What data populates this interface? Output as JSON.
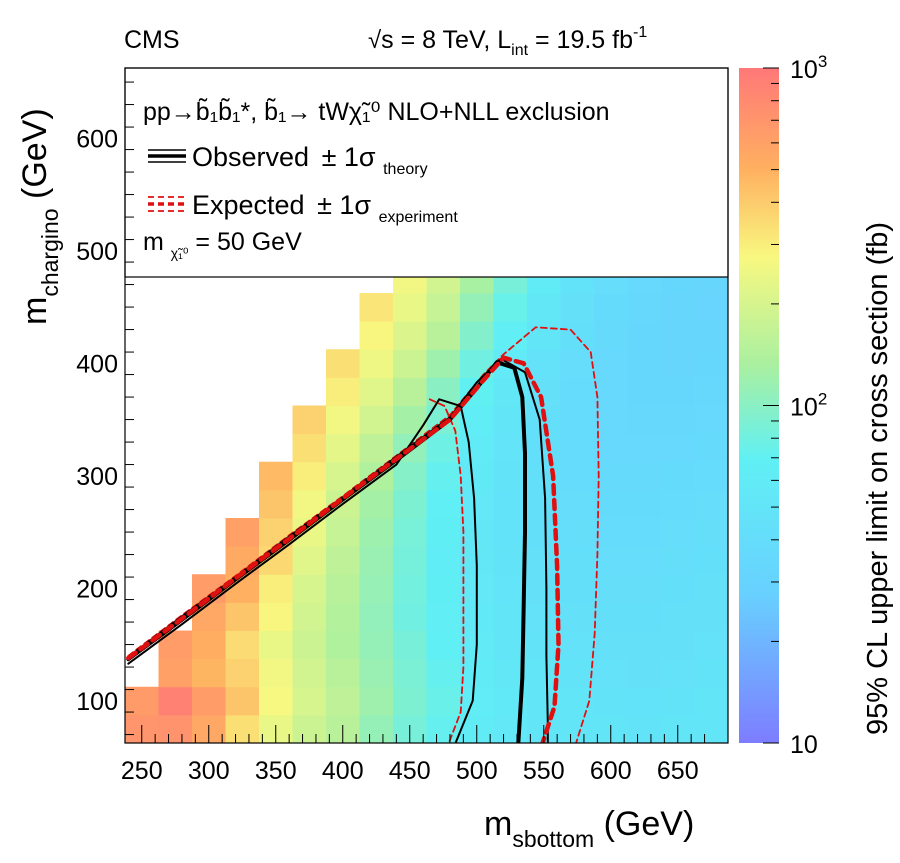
{
  "chart_data": {
    "type": "heatmap",
    "experiment": "CMS",
    "energy": {
      "root": "√",
      "s": "s",
      "eq": " = 8 TeV,  ",
      "L": "L",
      "L_sub": "int",
      "lumi": " = 19.5 fb",
      "lumi_sup": "-1"
    },
    "xlabel": {
      "main": "m",
      "sub": "sbottom",
      "unit": " (GeV)"
    },
    "ylabel": {
      "main": "m",
      "sub": "chargino",
      "unit": " (GeV)"
    },
    "zlabel": "95% CL upper limit on cross section (fb)",
    "xlim": [
      237.5,
      687.5
    ],
    "ylim": [
      62.5,
      662.5
    ],
    "zlim": [
      10,
      1000
    ],
    "xticks": [
      250,
      300,
      350,
      400,
      450,
      500,
      550,
      600,
      650
    ],
    "yticks": [
      100,
      200,
      300,
      400,
      500,
      600
    ],
    "zticks": [
      {
        "value": 10,
        "base": "10",
        "exp": ""
      },
      {
        "value": 100,
        "base": "10",
        "exp": "2"
      },
      {
        "value": 1000,
        "base": "10",
        "exp": "3"
      }
    ],
    "legend": {
      "process": "pp→b̃₁b̃₁*, b̃₁→ tWχ̃₁⁰  NLO+NLL exclusion",
      "observed": {
        "label": "Observed",
        "pm": "± 1σ",
        "sub": "theory"
      },
      "expected": {
        "label": "Expected",
        "pm": "± 1σ",
        "sub": "experiment"
      },
      "lsp": {
        "m": "m",
        "sub": "χ̃₁⁰",
        "text": " = 50 GeV"
      }
    },
    "grid": {
      "x_start": 250,
      "x_step": 25,
      "nx": 18,
      "y_start": 75,
      "y_step": 25,
      "ny": 17,
      "rows": [
        [
          700,
          720,
          560,
          340,
          240,
          180,
          150,
          110,
          85,
          72,
          62,
          55,
          52,
          50,
          50,
          48,
          50,
          52
        ],
        [
          650,
          900,
          640,
          420,
          270,
          200,
          160,
          120,
          90,
          75,
          63,
          56,
          52,
          50,
          48,
          47,
          48,
          50
        ],
        [
          0,
          600,
          480,
          380,
          260,
          190,
          150,
          115,
          88,
          72,
          60,
          54,
          50,
          48,
          46,
          45,
          46,
          48
        ],
        [
          0,
          640,
          520,
          350,
          240,
          180,
          140,
          110,
          85,
          68,
          58,
          52,
          48,
          46,
          44,
          44,
          45,
          46
        ],
        [
          0,
          0,
          560,
          420,
          280,
          190,
          145,
          108,
          80,
          65,
          56,
          50,
          46,
          44,
          42,
          42,
          44,
          45
        ],
        [
          0,
          0,
          640,
          500,
          300,
          200,
          150,
          112,
          82,
          66,
          55,
          49,
          45,
          43,
          41,
          41,
          42,
          44
        ],
        [
          0,
          0,
          0,
          540,
          360,
          220,
          160,
          115,
          84,
          64,
          54,
          48,
          44,
          42,
          40,
          40,
          41,
          42
        ],
        [
          0,
          0,
          0,
          600,
          380,
          240,
          170,
          118,
          86,
          66,
          54,
          47,
          43,
          41,
          39,
          39,
          40,
          41
        ],
        [
          0,
          0,
          0,
          0,
          420,
          260,
          180,
          125,
          90,
          68,
          55,
          47,
          42,
          40,
          38,
          38,
          39,
          40
        ],
        [
          0,
          0,
          0,
          0,
          460,
          300,
          200,
          140,
          96,
          72,
          57,
          48,
          42,
          39,
          37,
          37,
          38,
          39
        ],
        [
          0,
          0,
          0,
          0,
          0,
          340,
          230,
          160,
          108,
          78,
          60,
          49,
          43,
          39,
          36,
          36,
          36,
          37
        ],
        [
          0,
          0,
          0,
          0,
          0,
          380,
          260,
          190,
          125,
          88,
          64,
          50,
          43,
          39,
          36,
          35,
          35,
          36
        ],
        [
          0,
          0,
          0,
          0,
          0,
          0,
          300,
          220,
          150,
          100,
          70,
          53,
          44,
          39,
          36,
          34,
          34,
          35
        ],
        [
          0,
          0,
          0,
          0,
          0,
          0,
          340,
          250,
          180,
          120,
          80,
          58,
          46,
          40,
          36,
          34,
          33,
          34
        ],
        [
          0,
          0,
          0,
          0,
          0,
          0,
          0,
          280,
          210,
          150,
          95,
          65,
          50,
          42,
          37,
          34,
          33,
          33
        ],
        [
          0,
          0,
          0,
          0,
          0,
          0,
          0,
          320,
          240,
          170,
          110,
          74,
          54,
          44,
          38,
          35,
          33,
          32
        ],
        [
          0,
          0,
          0,
          0,
          0,
          0,
          0,
          0,
          260,
          190,
          130,
          85,
          60,
          47,
          40,
          36,
          34,
          33
        ]
      ]
    },
    "contours": {
      "observed": [
        [
          240,
          137
        ],
        [
          280,
          172
        ],
        [
          320,
          208
        ],
        [
          360,
          243
        ],
        [
          400,
          279
        ],
        [
          440,
          314
        ],
        [
          480,
          350
        ],
        [
          500,
          378
        ],
        [
          515,
          401
        ],
        [
          528,
          396
        ],
        [
          534,
          370
        ],
        [
          536,
          320
        ],
        [
          536,
          250
        ],
        [
          535,
          180
        ],
        [
          534,
          120
        ],
        [
          531,
          62
        ]
      ],
      "observed_minus": [
        [
          240,
          133
        ],
        [
          280,
          168
        ],
        [
          320,
          204
        ],
        [
          360,
          239
        ],
        [
          400,
          275
        ],
        [
          440,
          310
        ],
        [
          460,
          345
        ],
        [
          472,
          368
        ],
        [
          488,
          362
        ],
        [
          494,
          330
        ],
        [
          498,
          280
        ],
        [
          500,
          220
        ],
        [
          500,
          150
        ],
        [
          497,
          100
        ],
        [
          484,
          62
        ]
      ],
      "observed_plus": [
        [
          240,
          139
        ],
        [
          280,
          175
        ],
        [
          320,
          210
        ],
        [
          360,
          246
        ],
        [
          400,
          281
        ],
        [
          440,
          317
        ],
        [
          480,
          352
        ],
        [
          500,
          383
        ],
        [
          518,
          404
        ],
        [
          536,
          392
        ],
        [
          547,
          350
        ],
        [
          551,
          280
        ],
        [
          552,
          200
        ],
        [
          552,
          140
        ],
        [
          553,
          80
        ],
        [
          553,
          62
        ]
      ],
      "expected": [
        [
          240,
          138
        ],
        [
          280,
          173
        ],
        [
          320,
          209
        ],
        [
          360,
          244
        ],
        [
          400,
          280
        ],
        [
          440,
          315
        ],
        [
          480,
          350
        ],
        [
          505,
          385
        ],
        [
          520,
          405
        ],
        [
          535,
          400
        ],
        [
          548,
          370
        ],
        [
          557,
          300
        ],
        [
          560,
          220
        ],
        [
          561,
          150
        ],
        [
          558,
          95
        ],
        [
          549,
          62
        ]
      ],
      "expected_minus": [
        [
          465,
          368
        ],
        [
          476,
          362
        ],
        [
          484,
          340
        ],
        [
          488,
          300
        ],
        [
          490,
          250
        ],
        [
          490,
          190
        ],
        [
          490,
          130
        ],
        [
          488,
          90
        ],
        [
          479,
          62
        ]
      ],
      "expected_plus": [
        [
          240,
          140
        ],
        [
          280,
          176
        ],
        [
          320,
          211
        ],
        [
          360,
          247
        ],
        [
          400,
          282
        ],
        [
          440,
          318
        ],
        [
          480,
          354
        ],
        [
          505,
          390
        ],
        [
          520,
          408
        ],
        [
          544,
          432
        ],
        [
          570,
          430
        ],
        [
          585,
          410
        ],
        [
          590,
          370
        ],
        [
          591,
          300
        ],
        [
          590,
          230
        ],
        [
          588,
          160
        ],
        [
          584,
          100
        ],
        [
          574,
          62
        ]
      ]
    }
  }
}
